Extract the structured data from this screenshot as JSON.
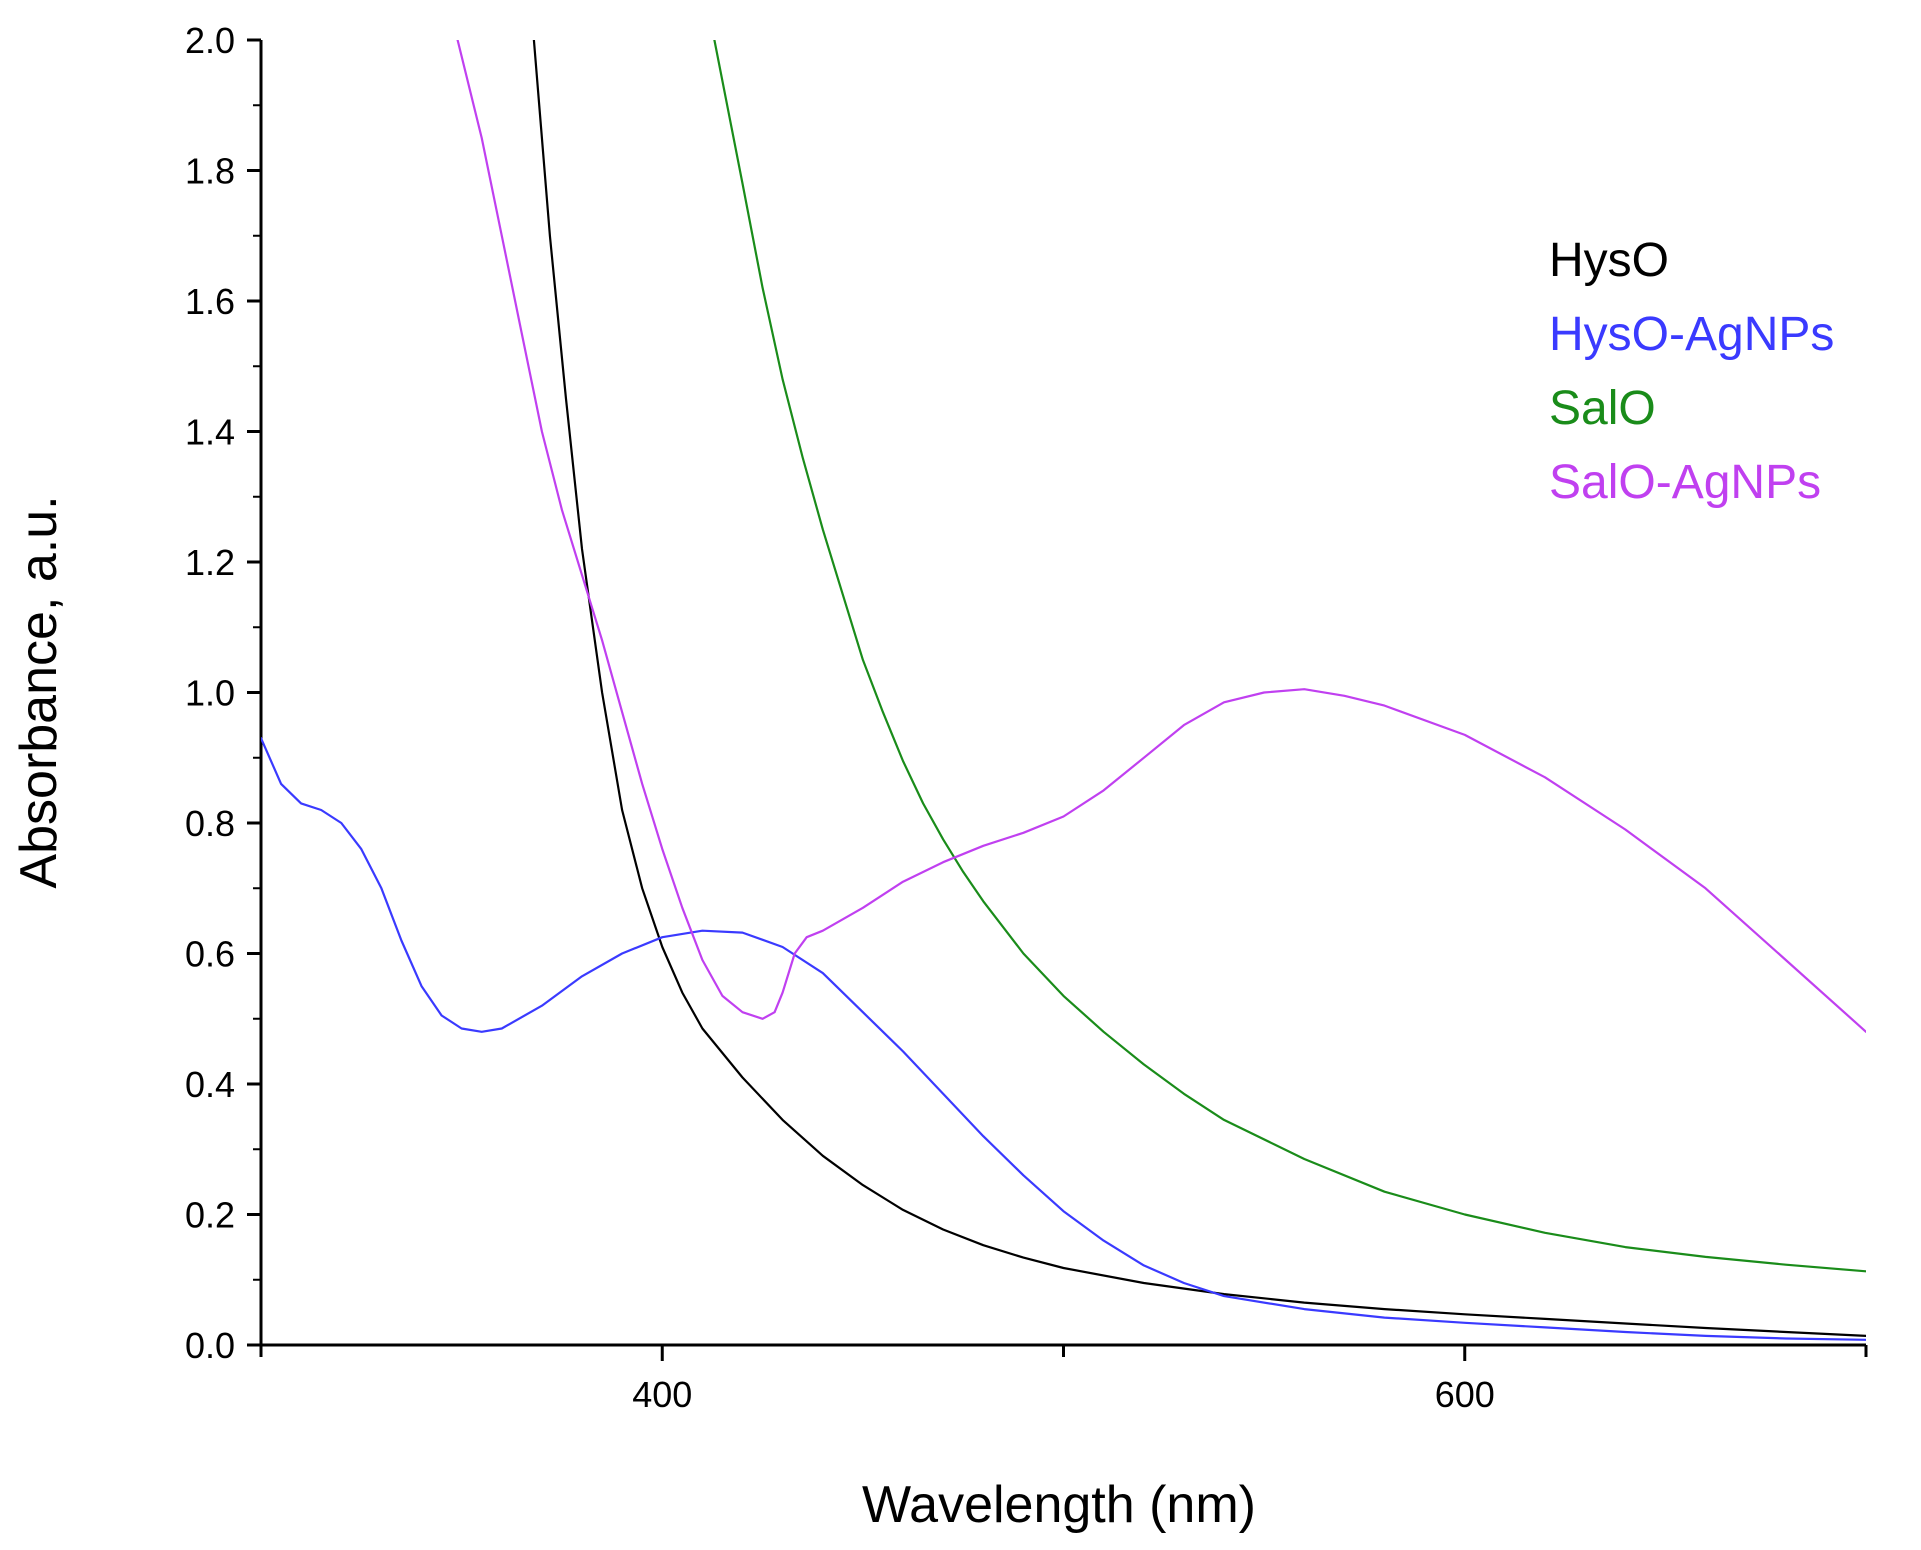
{
  "chart_data": {
    "type": "line",
    "title": "",
    "xlabel": "Wavelength (nm)",
    "ylabel": "Absorbance, a.u.",
    "xlim": [
      300,
      700
    ],
    "ylim": [
      0,
      2.0
    ],
    "x_major_ticks": [
      400,
      600
    ],
    "x_minor_ticks": [
      300,
      500,
      700
    ],
    "y_major_ticks": [
      "0.0",
      "0.2",
      "0.4",
      "0.6",
      "0.8",
      "1.0",
      "1.2",
      "1.4",
      "1.6",
      "1.8",
      "2.0"
    ],
    "legend_position": "top-right",
    "series": [
      {
        "name": "HysO",
        "color": "#000000",
        "points": [
          [
            368,
            2.0
          ],
          [
            372,
            1.7
          ],
          [
            376,
            1.45
          ],
          [
            380,
            1.22
          ],
          [
            385,
            1.0
          ],
          [
            390,
            0.82
          ],
          [
            395,
            0.7
          ],
          [
            400,
            0.61
          ],
          [
            405,
            0.54
          ],
          [
            410,
            0.485
          ],
          [
            420,
            0.41
          ],
          [
            430,
            0.345
          ],
          [
            440,
            0.29
          ],
          [
            450,
            0.245
          ],
          [
            460,
            0.207
          ],
          [
            470,
            0.177
          ],
          [
            480,
            0.153
          ],
          [
            490,
            0.134
          ],
          [
            500,
            0.118
          ],
          [
            520,
            0.095
          ],
          [
            540,
            0.078
          ],
          [
            560,
            0.065
          ],
          [
            580,
            0.055
          ],
          [
            600,
            0.047
          ],
          [
            620,
            0.04
          ],
          [
            640,
            0.033
          ],
          [
            660,
            0.026
          ],
          [
            680,
            0.02
          ],
          [
            700,
            0.014
          ]
        ]
      },
      {
        "name": "HysO-AgNPs",
        "color": "#3a3aff",
        "points": [
          [
            300,
            0.93
          ],
          [
            305,
            0.86
          ],
          [
            310,
            0.83
          ],
          [
            315,
            0.82
          ],
          [
            320,
            0.8
          ],
          [
            325,
            0.76
          ],
          [
            330,
            0.7
          ],
          [
            335,
            0.62
          ],
          [
            340,
            0.55
          ],
          [
            345,
            0.505
          ],
          [
            350,
            0.485
          ],
          [
            355,
            0.48
          ],
          [
            360,
            0.485
          ],
          [
            370,
            0.52
          ],
          [
            380,
            0.565
          ],
          [
            390,
            0.6
          ],
          [
            400,
            0.625
          ],
          [
            410,
            0.635
          ],
          [
            420,
            0.632
          ],
          [
            430,
            0.61
          ],
          [
            440,
            0.57
          ],
          [
            450,
            0.51
          ],
          [
            460,
            0.45
          ],
          [
            470,
            0.385
          ],
          [
            480,
            0.32
          ],
          [
            490,
            0.26
          ],
          [
            500,
            0.205
          ],
          [
            510,
            0.16
          ],
          [
            520,
            0.122
          ],
          [
            530,
            0.095
          ],
          [
            540,
            0.075
          ],
          [
            560,
            0.055
          ],
          [
            580,
            0.042
          ],
          [
            600,
            0.034
          ],
          [
            620,
            0.027
          ],
          [
            640,
            0.02
          ],
          [
            660,
            0.014
          ],
          [
            680,
            0.01
          ],
          [
            700,
            0.008
          ]
        ]
      },
      {
        "name": "SalO",
        "color": "#1a8c1a",
        "points": [
          [
            413,
            2.0
          ],
          [
            420,
            1.78
          ],
          [
            425,
            1.62
          ],
          [
            430,
            1.48
          ],
          [
            435,
            1.36
          ],
          [
            440,
            1.25
          ],
          [
            445,
            1.15
          ],
          [
            450,
            1.05
          ],
          [
            455,
            0.97
          ],
          [
            460,
            0.895
          ],
          [
            465,
            0.83
          ],
          [
            470,
            0.775
          ],
          [
            475,
            0.725
          ],
          [
            480,
            0.68
          ],
          [
            490,
            0.6
          ],
          [
            500,
            0.535
          ],
          [
            510,
            0.48
          ],
          [
            520,
            0.43
          ],
          [
            530,
            0.385
          ],
          [
            540,
            0.345
          ],
          [
            560,
            0.285
          ],
          [
            580,
            0.235
          ],
          [
            600,
            0.2
          ],
          [
            620,
            0.172
          ],
          [
            640,
            0.15
          ],
          [
            660,
            0.135
          ],
          [
            680,
            0.123
          ],
          [
            700,
            0.113
          ]
        ]
      },
      {
        "name": "SalO-AgNPs",
        "color": "#c040f0",
        "points": [
          [
            349,
            2.0
          ],
          [
            355,
            1.85
          ],
          [
            360,
            1.7
          ],
          [
            365,
            1.55
          ],
          [
            370,
            1.4
          ],
          [
            375,
            1.28
          ],
          [
            380,
            1.18
          ],
          [
            385,
            1.08
          ],
          [
            390,
            0.97
          ],
          [
            395,
            0.86
          ],
          [
            400,
            0.76
          ],
          [
            405,
            0.67
          ],
          [
            410,
            0.59
          ],
          [
            415,
            0.535
          ],
          [
            420,
            0.51
          ],
          [
            425,
            0.5
          ],
          [
            428,
            0.51
          ],
          [
            430,
            0.54
          ],
          [
            433,
            0.6
          ],
          [
            436,
            0.625
          ],
          [
            440,
            0.635
          ],
          [
            450,
            0.67
          ],
          [
            460,
            0.71
          ],
          [
            470,
            0.74
          ],
          [
            480,
            0.765
          ],
          [
            490,
            0.785
          ],
          [
            500,
            0.81
          ],
          [
            510,
            0.85
          ],
          [
            520,
            0.9
          ],
          [
            530,
            0.95
          ],
          [
            540,
            0.985
          ],
          [
            550,
            1.0
          ],
          [
            560,
            1.005
          ],
          [
            570,
            0.995
          ],
          [
            580,
            0.98
          ],
          [
            600,
            0.935
          ],
          [
            620,
            0.87
          ],
          [
            640,
            0.79
          ],
          [
            660,
            0.7
          ],
          [
            680,
            0.59
          ],
          [
            700,
            0.48
          ]
        ]
      }
    ]
  }
}
